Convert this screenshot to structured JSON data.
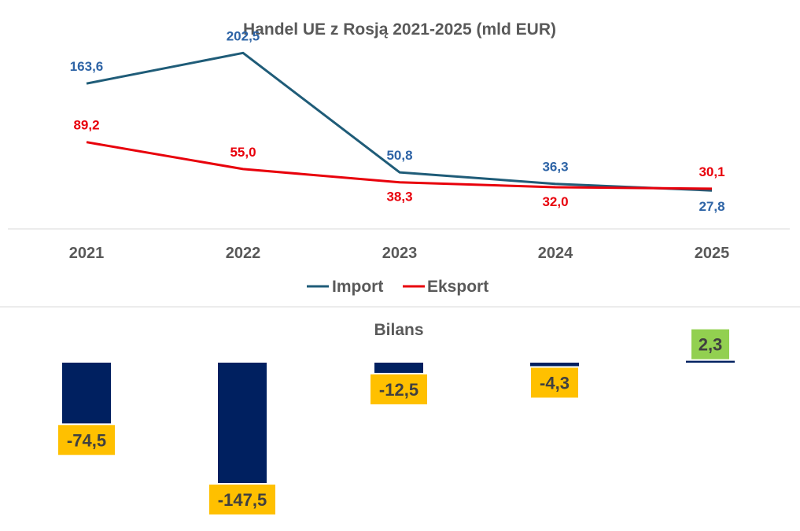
{
  "chart_data": [
    {
      "type": "line",
      "title": "Handel UE z Rosją 2021-2025 (mld EUR)",
      "categories": [
        "2021",
        "2022",
        "2023",
        "2024",
        "2025"
      ],
      "series": [
        {
          "name": "Import",
          "color": "#1F5C78",
          "values": [
            163.6,
            202.5,
            50.8,
            36.3,
            27.8
          ],
          "labels": [
            "163,6",
            "202,5",
            "50,8",
            "36,3",
            "27,8"
          ]
        },
        {
          "name": "Eksport",
          "color": "#E8000B",
          "values": [
            89.2,
            55.0,
            38.3,
            32.0,
            30.1
          ],
          "labels": [
            "89,2",
            "55,0",
            "38,3",
            "32,0",
            "30,1"
          ]
        }
      ],
      "label_colors": {
        "Import": "#2E64A6",
        "Eksport": "#E8000B"
      },
      "ylim": [
        0,
        225
      ],
      "legend": "bottom"
    },
    {
      "type": "bar",
      "title": "Bilans",
      "categories": [
        "2021",
        "2022",
        "2023",
        "2024",
        "2025"
      ],
      "values": [
        -74.5,
        -147.5,
        -12.5,
        -4.3,
        2.3
      ],
      "labels": [
        "-74,5",
        "-147,5",
        "-12,5",
        "-4,3",
        "2,3"
      ],
      "bar_color": "#002060",
      "label_bg_negative": "#FFC000",
      "label_bg_positive": "#92D050"
    }
  ]
}
